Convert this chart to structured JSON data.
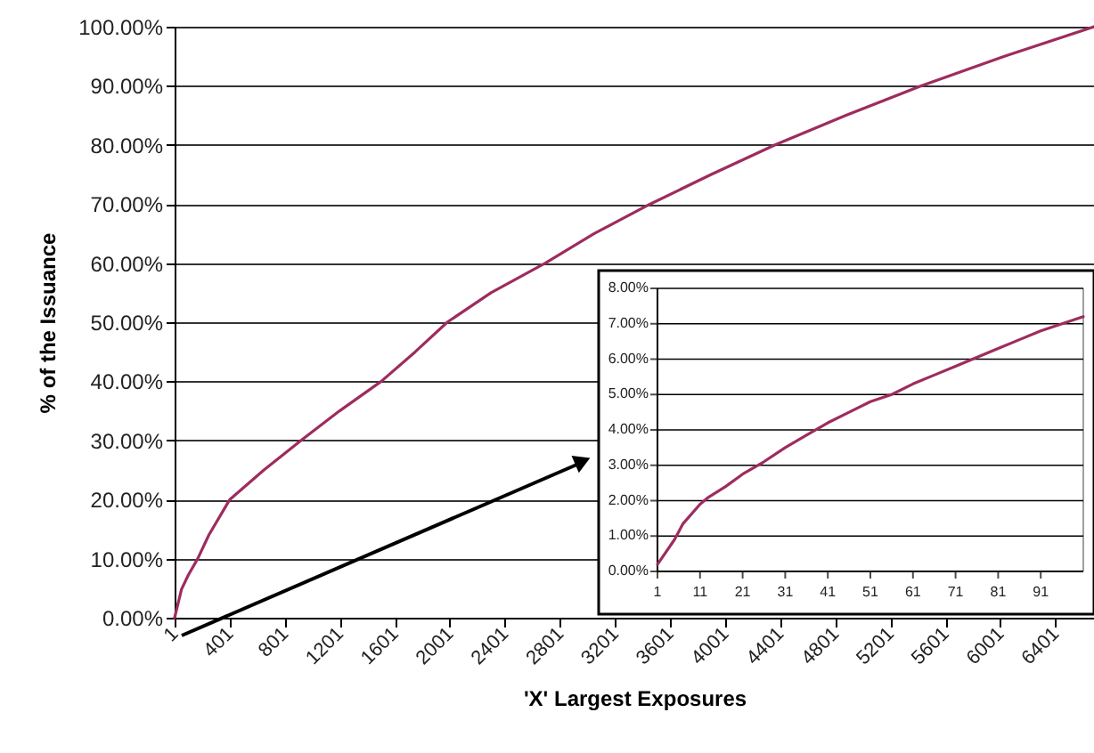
{
  "chart_data": [
    {
      "type": "line",
      "xlabel": "'X' Largest Exposures",
      "ylabel": "% of the Issuance",
      "grid": "y",
      "xlim": [
        1,
        6681
      ],
      "ylim": [
        0,
        100
      ],
      "xticks": [
        1,
        401,
        801,
        1201,
        1601,
        2001,
        2401,
        2801,
        3201,
        3601,
        4001,
        4401,
        4801,
        5201,
        5601,
        6001,
        6401
      ],
      "yticks": [
        {
          "value": 0,
          "label": "0.00%"
        },
        {
          "value": 10,
          "label": "10.00%"
        },
        {
          "value": 20,
          "label": "20.00%"
        },
        {
          "value": 30,
          "label": "30.00%"
        },
        {
          "value": 40,
          "label": "40.00%"
        },
        {
          "value": 50,
          "label": "50.00%"
        },
        {
          "value": 60,
          "label": "60.00%"
        },
        {
          "value": 70,
          "label": "70.00%"
        },
        {
          "value": 80,
          "label": "80.00%"
        },
        {
          "value": 90,
          "label": "90.00%"
        },
        {
          "value": 100,
          "label": "100.00%"
        }
      ],
      "x": [
        1,
        51,
        100,
        169,
        250,
        402,
        650,
        920,
        1200,
        1503,
        1750,
        1982,
        2300,
        2694,
        3050,
        3457,
        3900,
        4364,
        4880,
        5425,
        6030,
        6681
      ],
      "series": [
        {
          "color": "#9e2c5e",
          "values": [
            0,
            4.8,
            7.2,
            10,
            14,
            20,
            25,
            30,
            35,
            40,
            45,
            50,
            55,
            60,
            65,
            70,
            75,
            80,
            85,
            90,
            95,
            100
          ]
        }
      ]
    },
    {
      "type": "line",
      "grid": "y",
      "xlim": [
        1,
        101
      ],
      "ylim": [
        0,
        8
      ],
      "xticks": [
        1,
        11,
        21,
        31,
        41,
        51,
        61,
        71,
        81,
        91
      ],
      "yticks": [
        {
          "value": 0,
          "label": "0.00%"
        },
        {
          "value": 1,
          "label": "1.00%"
        },
        {
          "value": 2,
          "label": "2.00%"
        },
        {
          "value": 3,
          "label": "3.00%"
        },
        {
          "value": 4,
          "label": "4.00%"
        },
        {
          "value": 5,
          "label": "5.00%"
        },
        {
          "value": 6,
          "label": "6.00%"
        },
        {
          "value": 7,
          "label": "7.00%"
        },
        {
          "value": 8,
          "label": "8.00%"
        }
      ],
      "x": [
        1,
        5,
        7,
        11,
        13,
        17,
        21,
        26,
        31,
        36,
        41,
        46,
        51,
        56,
        61,
        66,
        71,
        76,
        81,
        86,
        91,
        96,
        101
      ],
      "series": [
        {
          "color": "#9e2c5e",
          "values": [
            0.2,
            0.9,
            1.35,
            1.9,
            2.1,
            2.4,
            2.75,
            3.1,
            3.5,
            3.85,
            4.2,
            4.5,
            4.8,
            5.0,
            5.3,
            5.55,
            5.8,
            6.05,
            6.3,
            6.55,
            6.8,
            7.0,
            7.2
          ]
        }
      ]
    }
  ]
}
